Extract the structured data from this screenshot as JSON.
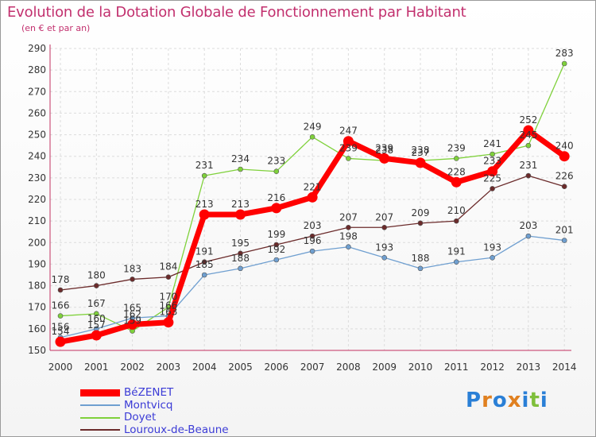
{
  "chart_data": {
    "type": "line",
    "title": "Evolution de la Dotation Globale de Fonctionnement par Habitant",
    "subtitle": "(en € et par an)",
    "x": [
      "2000",
      "2001",
      "2002",
      "2003",
      "2004",
      "2005",
      "2006",
      "2007",
      "2008",
      "2009",
      "2010",
      "2011",
      "2012",
      "2013",
      "2014"
    ],
    "ylim": [
      150,
      290
    ],
    "yticks": [
      150,
      160,
      170,
      180,
      190,
      200,
      210,
      220,
      230,
      240,
      250,
      260,
      270,
      280,
      290
    ],
    "grid": true,
    "legend_position": "bottom-left",
    "series": [
      {
        "name": "BéZENET",
        "color": "#ff0000",
        "values": [
          154,
          157,
          162,
          163,
          213,
          213,
          216,
          221,
          247,
          239,
          237,
          228,
          233,
          252,
          240
        ]
      },
      {
        "name": "Montvicq",
        "color": "#6f9fd0",
        "values": [
          156,
          160,
          165,
          166,
          185,
          188,
          192,
          196,
          198,
          193,
          188,
          191,
          193,
          203,
          201
        ]
      },
      {
        "name": "Doyet",
        "color": "#7fd13b",
        "values": [
          166,
          167,
          159,
          170,
          231,
          234,
          233,
          249,
          239,
          238,
          238,
          239,
          241,
          245,
          283
        ]
      },
      {
        "name": "Louroux-de-Beaune",
        "color": "#6b2b2b",
        "values": [
          178,
          180,
          183,
          184,
          191,
          195,
          199,
          203,
          207,
          207,
          209,
          210,
          225,
          231,
          226
        ]
      }
    ]
  },
  "logo": {
    "text": "Proxiti",
    "letters": [
      "P",
      "r",
      "o",
      "x",
      "i",
      "t",
      "i"
    ],
    "colors": [
      "#2a7fd6",
      "#e08020",
      "#2a7fd6",
      "#e08020",
      "#2a7fd6",
      "#7fbf3b",
      "#2a7fd6"
    ]
  }
}
